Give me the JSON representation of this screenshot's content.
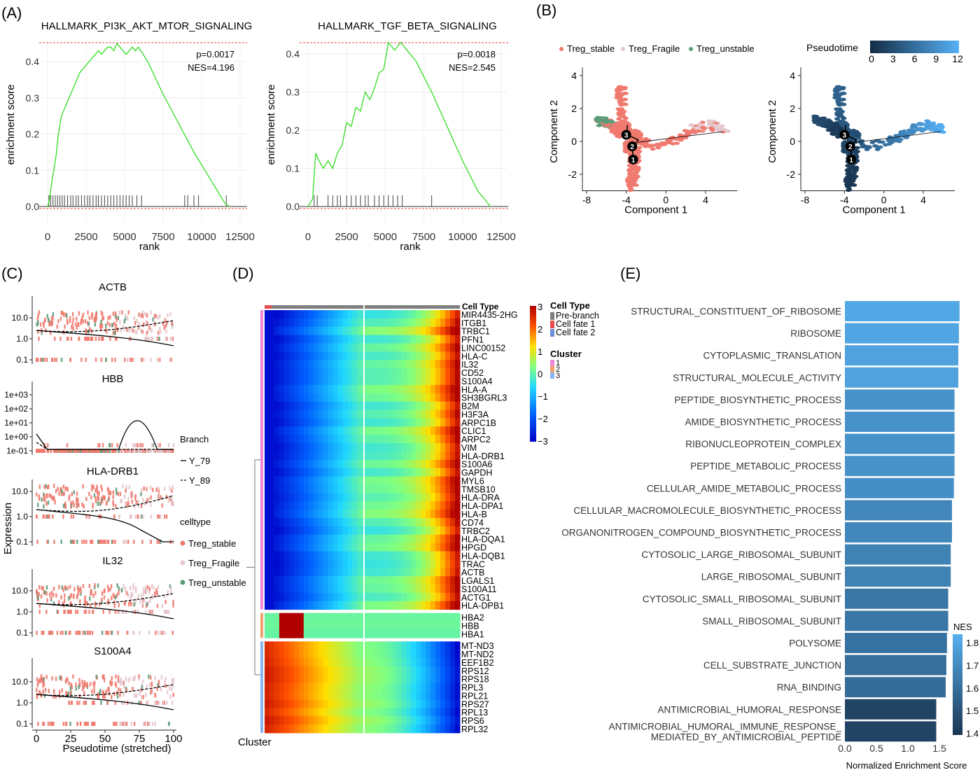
{
  "panel_labels": [
    "(A)",
    "(B)",
    "(C)",
    "(D)",
    "(E)"
  ],
  "colors": {
    "gsea_line": "#33dd22",
    "threshold": "#e8413c",
    "treg_stable": "#f07a6f",
    "treg_fragile": "#e5c8cd",
    "treg_unstable": "#5a9c79",
    "nes_low": "#1a3552",
    "nes_high": "#56b0f0",
    "pre_branch": "#7f7f7f",
    "cell_fate_1": "#e74c4c",
    "cell_fate_2": "#6a8fd6",
    "cluster_1": "#ef86d8",
    "cluster_2": "#f2a070",
    "cluster_3": "#88b4f0"
  },
  "chart_data": [
    {
      "id": "gsea-pi3k",
      "type": "line",
      "title": "HALLMARK_PI3K_AKT_MTOR_SIGNALING",
      "xlabel": "rank",
      "ylabel": "enrichment score",
      "xlim": [
        0,
        12500
      ],
      "ylim": [
        0,
        0.45
      ],
      "xticks": [
        "0",
        "2500",
        "5000",
        "7500",
        "10000",
        "12500"
      ],
      "yticks": [
        "0.0",
        "0.1",
        "0.2",
        "0.3",
        "0.4"
      ],
      "annotation": [
        "p=0.0017",
        "NES=4.196"
      ],
      "x": [
        0,
        80,
        150,
        250,
        400,
        550,
        700,
        900,
        1100,
        1300,
        1500,
        1700,
        1900,
        2100,
        2300,
        2500,
        2700,
        2900,
        3100,
        3300,
        3500,
        3700,
        3900,
        4100,
        4300,
        4500,
        4700,
        4900,
        5100,
        5300,
        5500,
        5700,
        5900,
        6500,
        7500,
        8500,
        9500,
        10500,
        11500,
        11800
      ],
      "y": [
        0.0,
        0.01,
        0.03,
        0.06,
        0.1,
        0.14,
        0.2,
        0.25,
        0.27,
        0.29,
        0.31,
        0.33,
        0.35,
        0.37,
        0.38,
        0.39,
        0.4,
        0.41,
        0.42,
        0.43,
        0.42,
        0.43,
        0.44,
        0.44,
        0.43,
        0.45,
        0.44,
        0.43,
        0.42,
        0.43,
        0.44,
        0.43,
        0.44,
        0.4,
        0.31,
        0.23,
        0.15,
        0.08,
        0.01,
        0.0
      ],
      "hit_ranks": [
        80,
        200,
        350,
        500,
        650,
        800,
        950,
        1100,
        1300,
        1500,
        1650,
        1850,
        2000,
        2200,
        2400,
        2600,
        2750,
        2950,
        3150,
        3300,
        3500,
        3700,
        3900,
        4100,
        4300,
        4500,
        4700,
        4900,
        5100,
        5300,
        5500,
        5800,
        6100,
        8900,
        9100,
        9500,
        9800,
        11600
      ]
    },
    {
      "id": "gsea-tgf",
      "type": "line",
      "title": "HALLMARK_TGF_BETA_SIGNALING",
      "xlabel": "rank",
      "ylabel": "enrichment score",
      "xlim": [
        0,
        12500
      ],
      "ylim": [
        0,
        0.43
      ],
      "xticks": [
        "0",
        "2500",
        "5000",
        "7500",
        "10000",
        "12500"
      ],
      "yticks": [
        "0.0",
        "0.1",
        "0.2",
        "0.3",
        "0.4"
      ],
      "annotation": [
        "p=0.0018",
        "NES=2.545"
      ],
      "x": [
        0,
        300,
        500,
        700,
        1000,
        1300,
        1600,
        1900,
        2200,
        2500,
        2800,
        3100,
        3400,
        3700,
        4000,
        4300,
        4600,
        4900,
        5200,
        5600,
        6000,
        6400,
        7000,
        8000,
        9000,
        10000,
        11000,
        11800
      ],
      "y": [
        0.0,
        0.02,
        0.14,
        0.12,
        0.1,
        0.12,
        0.1,
        0.14,
        0.16,
        0.22,
        0.21,
        0.26,
        0.25,
        0.3,
        0.28,
        0.31,
        0.35,
        0.36,
        0.43,
        0.41,
        0.43,
        0.41,
        0.38,
        0.3,
        0.21,
        0.12,
        0.04,
        0.0
      ],
      "hit_ranks": [
        400,
        600,
        1300,
        1600,
        1900,
        2100,
        2500,
        2800,
        3100,
        3400,
        3700,
        3900,
        4300,
        4600,
        4900,
        5200,
        5500,
        5800,
        6100,
        8000
      ]
    },
    {
      "id": "traj-celltype",
      "type": "scatter",
      "xlabel": "Component 1",
      "ylabel": "Component 2",
      "xlim": [
        -8,
        7
      ],
      "ylim": [
        -3,
        4.5
      ],
      "xticks": [
        -8,
        -4,
        0,
        4
      ],
      "yticks": [
        -2,
        0,
        2,
        4
      ],
      "legend": [
        "Treg_stable",
        "Treg_Fragile",
        "Treg_unstable"
      ],
      "legend_position": "top",
      "branch_labels": [
        "3",
        "2",
        "1"
      ]
    },
    {
      "id": "traj-pseudotime",
      "type": "scatter",
      "xlabel": "Component 1",
      "ylabel": "Component 2",
      "xlim": [
        -8,
        7
      ],
      "ylim": [
        -3,
        4.5
      ],
      "xticks": [
        -8,
        -4,
        0,
        4
      ],
      "yticks": [
        -2,
        0,
        2,
        4
      ],
      "colorbar_title": "Pseudotime",
      "colorbar_ticks": [
        0,
        3,
        6,
        9,
        12
      ],
      "branch_labels": [
        "3",
        "2",
        "1"
      ]
    },
    {
      "id": "expression-branches",
      "type": "scatter",
      "xlabel": "Pseudotime (stretched)",
      "ylabel": "Expression",
      "xlim": [
        0,
        100
      ],
      "xticks": [
        "0",
        "25",
        "50",
        "75",
        "100"
      ],
      "genes": [
        {
          "name": "ACTB",
          "yticks": [
            "0.1",
            "1.0",
            "10.0"
          ]
        },
        {
          "name": "HBB",
          "yticks": [
            "1e-01",
            "1e+00",
            "1e+01",
            "1e+02",
            "1e+03"
          ]
        },
        {
          "name": "HLA-DRB1",
          "yticks": [
            "0.1",
            "1.0",
            "10.0"
          ]
        },
        {
          "name": "IL32",
          "yticks": [
            "0.1",
            "1.0",
            "10.0"
          ]
        },
        {
          "name": "S100A4",
          "yticks": [
            "0.1",
            "1.0",
            "10.0"
          ]
        }
      ],
      "legend": {
        "branch_title": "Branch",
        "branches": [
          "Y_79",
          "Y_89"
        ],
        "celltype_title": "celltype",
        "celltypes": [
          "Treg_stable",
          "Treg_Fragile",
          "Treg_unstable"
        ]
      }
    },
    {
      "id": "heatmap-branch",
      "type": "heatmap",
      "xlabel": "Cluster",
      "genes": [
        "MIR4435-2HG",
        "ITGB1",
        "TRBC1",
        "PFN1",
        "LINC00152",
        "HLA-C",
        "IL32",
        "CD52",
        "S100A4",
        "HLA-A",
        "SH3BGRL3",
        "B2M",
        "H3F3A",
        "ARPC1B",
        "CLIC1",
        "ARPC2",
        "VIM",
        "HLA-DRB1",
        "S100A6",
        "GAPDH",
        "MYL6",
        "TMSB10",
        "HLA-DRA",
        "HLA-DPA1",
        "HLA-B",
        "CD74",
        "TRBC2",
        "HLA-DQA1",
        "HPGD",
        "HLA-DQB1",
        "TRAC",
        "ACTB",
        "LGALS1",
        "S100A11",
        "ACTG1",
        "HLA-DPB1",
        "HBA2",
        "HBB",
        "HBA1",
        "MT-ND3",
        "MT-ND2",
        "EEF1B2",
        "RPS12",
        "RPS18",
        "RPL3",
        "RPL21",
        "RPS27",
        "RPL13",
        "RPS6",
        "RPL32"
      ],
      "clusters": [
        1,
        2,
        3
      ],
      "cluster_sizes": [
        36,
        3,
        11
      ],
      "colorbar_ticks": [
        "3",
        "2",
        "1",
        "0",
        "−1",
        "−2",
        "−3"
      ],
      "top_annotation_label": "Cell Type",
      "legend": {
        "cell_type_title": "Cell Type",
        "cell_types": [
          "Pre-branch",
          "Cell fate 1",
          "Cell fate 2"
        ],
        "cluster_title": "Cluster",
        "clusters": [
          "1",
          "2",
          "3"
        ]
      }
    },
    {
      "id": "nes-bars",
      "type": "bar",
      "xlabel": "Normalized Enrichment Score",
      "xlim": [
        0,
        1.85
      ],
      "xticks": [
        "0.0",
        "0.5",
        "1.0",
        "1.5"
      ],
      "categories": [
        "STRUCTURAL_CONSTITUENT_OF_RIBOSOME",
        "RIBOSOME",
        "CYTOPLASMIC_TRANSLATION",
        "STRUCTURAL_MOLECULE_ACTIVITY",
        "PEPTIDE_BIOSYNTHETIC_PROCESS",
        "AMIDE_BIOSYNTHETIC_PROCESS",
        "RIBONUCLEOPROTEIN_COMPLEX",
        "PEPTIDE_METABOLIC_PROCESS",
        "CELLULAR_AMIDE_METABOLIC_PROCESS",
        "CELLULAR_MACROMOLECULE_BIOSYNTHETIC_PROCESS",
        "ORGANONITROGEN_COMPOUND_BIOSYNTHETIC_PROCESS",
        "CYTOSOLIC_LARGE_RIBOSOMAL_SUBUNIT",
        "LARGE_RIBOSOMAL_SUBUNIT",
        "CYTOSOLIC_SMALL_RIBOSOMAL_SUBUNIT",
        "SMALL_RIBOSOMAL_SUBUNIT",
        "POLYSOME",
        "CELL_SUBSTRATE_JUNCTION",
        "RNA_BINDING",
        "ANTIMICROBIAL_HUMORAL_RESPONSE",
        "ANTIMICROBIAL_HUMORAL_IMMUNE_RESPONSE_\nMEDIATED_BY_ANTIMICROBIAL_PEPTIDE"
      ],
      "values": [
        1.82,
        1.81,
        1.8,
        1.8,
        1.74,
        1.74,
        1.74,
        1.74,
        1.73,
        1.7,
        1.7,
        1.68,
        1.68,
        1.64,
        1.64,
        1.62,
        1.61,
        1.6,
        1.45,
        1.45
      ],
      "legend_title": "NES",
      "colorbar_ticks": [
        "1.8",
        "1.7",
        "1.6",
        "1.5",
        "1.4"
      ],
      "color_range": [
        1.4,
        1.85
      ]
    }
  ]
}
